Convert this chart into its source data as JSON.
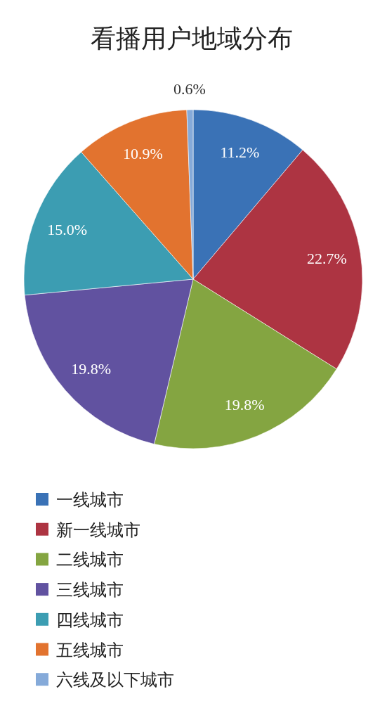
{
  "chart_data": {
    "type": "pie",
    "title": "看播用户地域分布",
    "categories": [
      "一线城市",
      "新一线城市",
      "二线城市",
      "三线城市",
      "四线城市",
      "五线城市",
      "六线及以下城市"
    ],
    "values": [
      11.2,
      22.7,
      19.8,
      19.8,
      15.0,
      10.9,
      0.6
    ],
    "colors": [
      "#3a72b6",
      "#ad3442",
      "#84a541",
      "#6152a0",
      "#3c9db2",
      "#e2732f",
      "#85aad9"
    ],
    "value_labels": [
      "11.2%",
      "22.7%",
      "19.8%",
      "19.8%",
      "15.0%",
      "10.9%",
      "0.6%"
    ],
    "legend": "bottom"
  }
}
